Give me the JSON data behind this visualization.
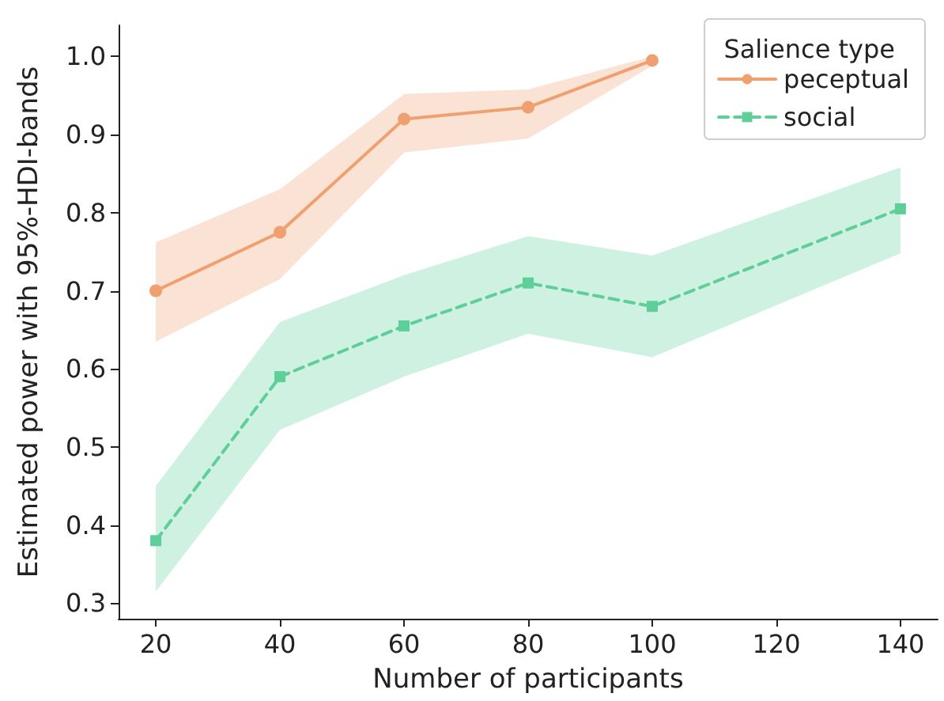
{
  "chart_data": {
    "type": "line",
    "xlabel": "Number of participants",
    "ylabel": "Estimated power with 95%-HDI-bands",
    "legend_title": "Salience type",
    "legend": "top right",
    "grid": false,
    "xlim": [
      14,
      146
    ],
    "xticks": [
      20,
      40,
      60,
      80,
      100,
      120,
      140
    ],
    "ylim": [
      0.28,
      1.04
    ],
    "yticks": [
      0.3,
      0.4,
      0.5,
      0.6,
      0.7,
      0.8,
      0.9,
      {
        "value": 1,
        "label": "1.0"
      }
    ],
    "series": [
      {
        "name": "peceptual",
        "color": "#f0a070",
        "marker": "circle",
        "line_style": "solid",
        "x": [
          20,
          40,
          60,
          80,
          100
        ],
        "values": [
          0.7,
          0.775,
          0.92,
          0.935,
          0.995
        ],
        "lower": [
          0.635,
          0.715,
          0.877,
          0.895,
          0.988
        ],
        "upper": [
          0.762,
          0.83,
          0.952,
          0.958,
          1.0
        ]
      },
      {
        "name": "social",
        "color": "#5fcf9a",
        "marker": "square",
        "line_style": "dashed",
        "x": [
          20,
          40,
          60,
          80,
          100,
          140
        ],
        "values": [
          0.38,
          0.59,
          0.655,
          0.71,
          0.68,
          0.805
        ],
        "lower": [
          0.315,
          0.522,
          0.59,
          0.645,
          0.615,
          0.748
        ],
        "upper": [
          0.45,
          0.66,
          0.72,
          0.77,
          0.745,
          0.858
        ]
      }
    ]
  }
}
